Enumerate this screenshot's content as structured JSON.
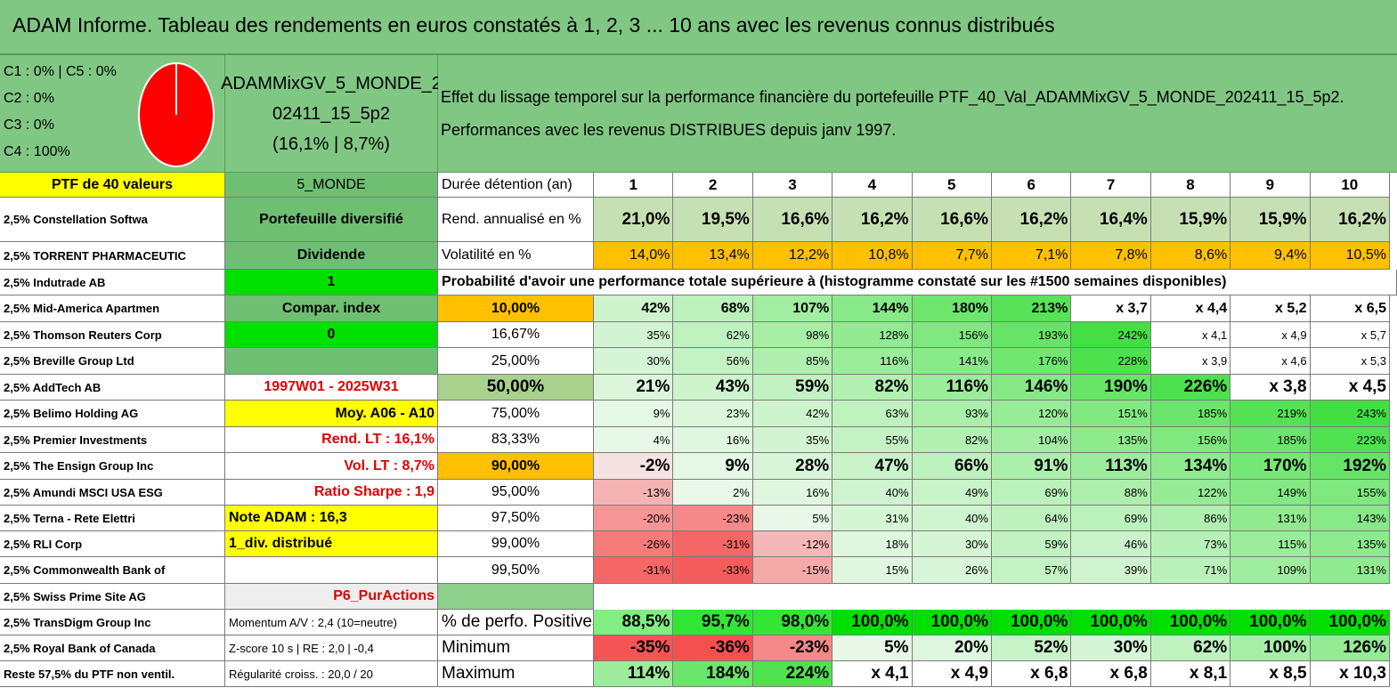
{
  "title": "ADAM Informe. Tableau des rendements en euros constatés à 1, 2, 3 ... 10 ans avec les revenus connus distribués",
  "classes": [
    "C1 : 0% | C5 : 0%",
    "C2 : 0%",
    "C3 : 0%",
    "C4 : 100%"
  ],
  "pie": {
    "C1": 0,
    "C2": 0,
    "C3": 0,
    "C4": 100,
    "color": "#ff0000"
  },
  "portfolio_name": [
    "ADAMMixGV_5_MONDE_2",
    "02411_15_5p2",
    "(16,1% | 8,7%)"
  ],
  "description": [
    "Effet du lissage temporel sur la performance financière du portefeuille PTF_40_Val_ADAMMixGV_5_MONDE_202411_15_5p2.",
    "Performances avec les revenus DISTRIBUES depuis janv 1997."
  ],
  "ptf_label": "PTF de 40 valeurs",
  "zone_label": "5_MONDE",
  "holdings": [
    "2,5% Constellation Softwa",
    "2,5% TORRENT PHARMACEUTIC",
    "2,5% Indutrade AB",
    "2,5% Mid-America Apartmen",
    "2,5% Thomson Reuters Corp",
    "2,5% Breville Group Ltd",
    "2,5% AddTech AB",
    "2,5% Belimo Holding AG",
    "2,5% Premier Investments",
    "2,5% The Ensign Group Inc",
    "2,5% Amundi MSCI USA ESG",
    "2,5% Terna - Rete Elettri",
    "2,5% RLI Corp",
    "2,5% Commonwealth Bank of",
    "2,5% Swiss Prime Site AG",
    "2,5% TransDigm Group Inc",
    "2,5% Royal Bank of Canada",
    "Reste 57,5% du PTF non ventil."
  ],
  "info": [
    "Portefeuille diversifié",
    "Dividende",
    "1",
    "Compar. index",
    "0",
    "",
    "1997W01 - 2025W31",
    "Moy. A06 - A10",
    "Rend. LT : 16,1%",
    "Vol. LT : 8,7%",
    "Ratio Sharpe : 1,9",
    "Note ADAM : 16,3",
    "1_div. distribué",
    "",
    "P6_PurActions",
    "Momentum A/V : 2,4 (10=neutre)",
    "Z-score 10 s | RE : 2,0 | -0,4",
    "Régularité croiss. : 20,0 / 20"
  ],
  "headers": {
    "duration": "Durée détention (an)",
    "years": [
      "1",
      "2",
      "3",
      "4",
      "5",
      "6",
      "7",
      "8",
      "9",
      "10"
    ],
    "rend": "Rend. annualisé en %",
    "vol": "Volatilité en %",
    "prob": "Probabilité d'avoir une performance totale supérieure à (histogramme constaté sur les #1500 semaines disponibles)",
    "pos": "% de perfo. Positives",
    "min": "Minimum",
    "max": "Maximum"
  },
  "rend_values": [
    "21,0%",
    "19,5%",
    "16,6%",
    "16,2%",
    "16,6%",
    "16,2%",
    "16,4%",
    "15,9%",
    "15,9%",
    "16,2%"
  ],
  "vol_values": [
    "14,0%",
    "13,4%",
    "12,2%",
    "10,8%",
    "7,7%",
    "7,1%",
    "7,8%",
    "8,6%",
    "9,4%",
    "10,5%"
  ],
  "percentiles": [
    "10,00%",
    "16,67%",
    "25,00%",
    "50,00%",
    "75,00%",
    "83,33%",
    "90,00%",
    "95,00%",
    "97,50%",
    "99,00%",
    "99,50%"
  ],
  "prob_rows": [
    [
      "42%",
      "68%",
      "107%",
      "144%",
      "180%",
      "213%",
      "x 3,7",
      "x 4,4",
      "x 5,2",
      "x 6,5"
    ],
    [
      "35%",
      "62%",
      "98%",
      "128%",
      "156%",
      "193%",
      "242%",
      "x 4,1",
      "x 4,9",
      "x 5,7"
    ],
    [
      "30%",
      "56%",
      "85%",
      "116%",
      "141%",
      "176%",
      "228%",
      "x 3,9",
      "x 4,6",
      "x 5,3"
    ],
    [
      "21%",
      "43%",
      "59%",
      "82%",
      "116%",
      "146%",
      "190%",
      "226%",
      "x 3,8",
      "x 4,5"
    ],
    [
      "9%",
      "23%",
      "42%",
      "63%",
      "93%",
      "120%",
      "151%",
      "185%",
      "219%",
      "243%"
    ],
    [
      "4%",
      "16%",
      "35%",
      "55%",
      "82%",
      "104%",
      "135%",
      "156%",
      "185%",
      "223%"
    ],
    [
      "-2%",
      "9%",
      "28%",
      "47%",
      "66%",
      "91%",
      "113%",
      "134%",
      "170%",
      "192%"
    ],
    [
      "-13%",
      "2%",
      "16%",
      "40%",
      "49%",
      "69%",
      "88%",
      "122%",
      "149%",
      "155%"
    ],
    [
      "-20%",
      "-23%",
      "5%",
      "31%",
      "40%",
      "64%",
      "69%",
      "86%",
      "131%",
      "143%"
    ],
    [
      "-26%",
      "-31%",
      "-12%",
      "18%",
      "30%",
      "59%",
      "46%",
      "73%",
      "115%",
      "135%"
    ],
    [
      "-31%",
      "-33%",
      "-15%",
      "15%",
      "26%",
      "57%",
      "39%",
      "71%",
      "109%",
      "131%"
    ]
  ],
  "pos_values": [
    "88,5%",
    "95,7%",
    "98,0%",
    "100,0%",
    "100,0%",
    "100,0%",
    "100,0%",
    "100,0%",
    "100,0%",
    "100,0%"
  ],
  "min_values": [
    "-35%",
    "-36%",
    "-23%",
    "5%",
    "20%",
    "52%",
    "30%",
    "62%",
    "100%",
    "126%"
  ],
  "max_values": [
    "114%",
    "184%",
    "224%",
    "x 4,1",
    "x 4,9",
    "x 6,8",
    "x 6,8",
    "x 8,1",
    "x 8,5",
    "x 10,3"
  ],
  "colors": {
    "header_green": "#81c784",
    "yellow": "#ffff00",
    "orange": "#ffc000",
    "bright_green": "#00e000",
    "mid_green": "#6fbf73",
    "light_grey": "#eeeeee",
    "red_text": "#e00000"
  }
}
